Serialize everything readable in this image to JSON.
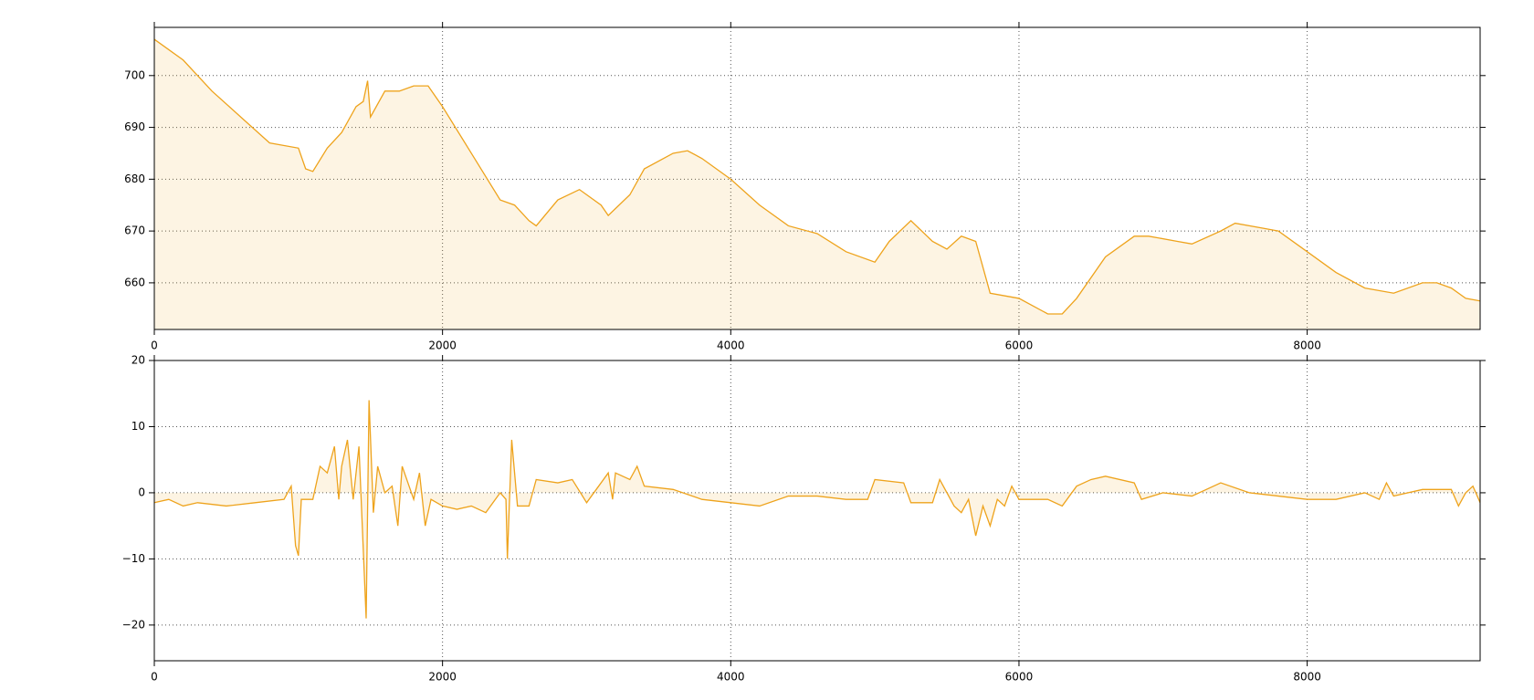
{
  "chart_data": [
    {
      "type": "area",
      "x": [
        0,
        200,
        400,
        600,
        800,
        1000,
        1050,
        1100,
        1200,
        1300,
        1400,
        1450,
        1480,
        1500,
        1600,
        1700,
        1800,
        1900,
        2000,
        2200,
        2400,
        2500,
        2600,
        2650,
        2800,
        2950,
        3100,
        3150,
        3300,
        3400,
        3600,
        3700,
        3800,
        4000,
        4200,
        4400,
        4600,
        4800,
        5000,
        5100,
        5250,
        5400,
        5500,
        5600,
        5700,
        5800,
        6000,
        6200,
        6300,
        6400,
        6600,
        6800,
        6900,
        7100,
        7200,
        7400,
        7500,
        7700,
        7800,
        8000,
        8200,
        8400,
        8600,
        8800,
        8900,
        9000,
        9100,
        9200
      ],
      "series": [
        {
          "color": "#eea31c",
          "values": [
            707,
            703,
            697,
            692,
            687,
            686,
            682,
            681.5,
            686,
            689,
            694,
            695,
            699,
            692,
            697,
            697,
            698,
            698,
            694,
            685,
            676,
            675,
            672,
            671,
            676,
            678,
            675,
            673,
            677,
            682,
            685,
            685.5,
            684,
            680,
            675,
            671,
            669.5,
            666,
            664,
            668,
            672,
            668,
            666.5,
            669,
            668,
            658,
            657,
            654,
            654,
            657,
            665,
            669,
            669,
            668,
            667.5,
            670,
            671.5,
            670.5,
            670,
            666,
            662,
            659,
            658,
            660,
            660,
            659,
            657,
            656.5
          ]
        }
      ],
      "xlim": [
        0,
        9200
      ],
      "xticks": [
        0,
        2000,
        4000,
        6000,
        8000
      ],
      "ylim": [
        651,
        709.3
      ],
      "yticks": [
        660,
        670,
        680,
        690,
        700
      ],
      "grid": true
    },
    {
      "type": "area",
      "x": [
        0,
        100,
        200,
        300,
        500,
        700,
        900,
        950,
        980,
        1000,
        1020,
        1100,
        1150,
        1200,
        1250,
        1280,
        1300,
        1340,
        1380,
        1420,
        1470,
        1490,
        1520,
        1550,
        1600,
        1650,
        1690,
        1720,
        1800,
        1840,
        1880,
        1920,
        2000,
        2100,
        2200,
        2300,
        2400,
        2440,
        2450,
        2480,
        2520,
        2600,
        2650,
        2800,
        2900,
        3000,
        3150,
        3180,
        3200,
        3300,
        3350,
        3400,
        3600,
        3800,
        4000,
        4200,
        4400,
        4600,
        4800,
        4950,
        5000,
        5200,
        5250,
        5400,
        5450,
        5550,
        5600,
        5650,
        5700,
        5750,
        5800,
        5850,
        5900,
        5950,
        6000,
        6200,
        6300,
        6400,
        6500,
        6600,
        6800,
        6850,
        7000,
        7200,
        7400,
        7600,
        7800,
        8000,
        8200,
        8400,
        8500,
        8550,
        8600,
        8800,
        9000,
        9050,
        9100,
        9150,
        9200
      ],
      "series": [
        {
          "color": "#eea31c",
          "values": [
            -1.5,
            -1,
            -2,
            -1.5,
            -2,
            -1.5,
            -1,
            1,
            -8,
            -9.5,
            -1,
            -1,
            4,
            3,
            7,
            -1,
            4,
            8,
            -1,
            7,
            -19,
            14,
            -3,
            4,
            0,
            1,
            -5,
            4,
            -1,
            3,
            -5,
            -1,
            -2,
            -2.5,
            -2,
            -3,
            0,
            -1,
            -10,
            8,
            -2,
            -2,
            2,
            1.5,
            2,
            -1.5,
            3,
            -1,
            3,
            2,
            4,
            1,
            0.5,
            -1,
            -1.5,
            -2,
            -0.5,
            -0.5,
            -1,
            -1,
            2,
            1.5,
            -1.5,
            -1.5,
            2,
            -2,
            -3,
            -1,
            -6.5,
            -2,
            -5,
            -1,
            -2,
            1,
            -1,
            -1,
            -2,
            1,
            2,
            2.5,
            1.5,
            -1,
            0,
            -0.5,
            1.5,
            0,
            -0.5,
            -1,
            -1,
            0,
            -1,
            1.5,
            -0.5,
            0.5,
            0.5,
            -2,
            0,
            1,
            -1.5
          ]
        }
      ],
      "xlim": [
        0,
        9200
      ],
      "xticks": [
        0,
        2000,
        4000,
        6000,
        8000
      ],
      "ylim": [
        -25.4,
        20
      ],
      "yticks": [
        {
          "value": -20,
          "label": "−20"
        },
        {
          "value": -10,
          "label": "−10"
        },
        0,
        10,
        20
      ],
      "grid": true
    }
  ]
}
